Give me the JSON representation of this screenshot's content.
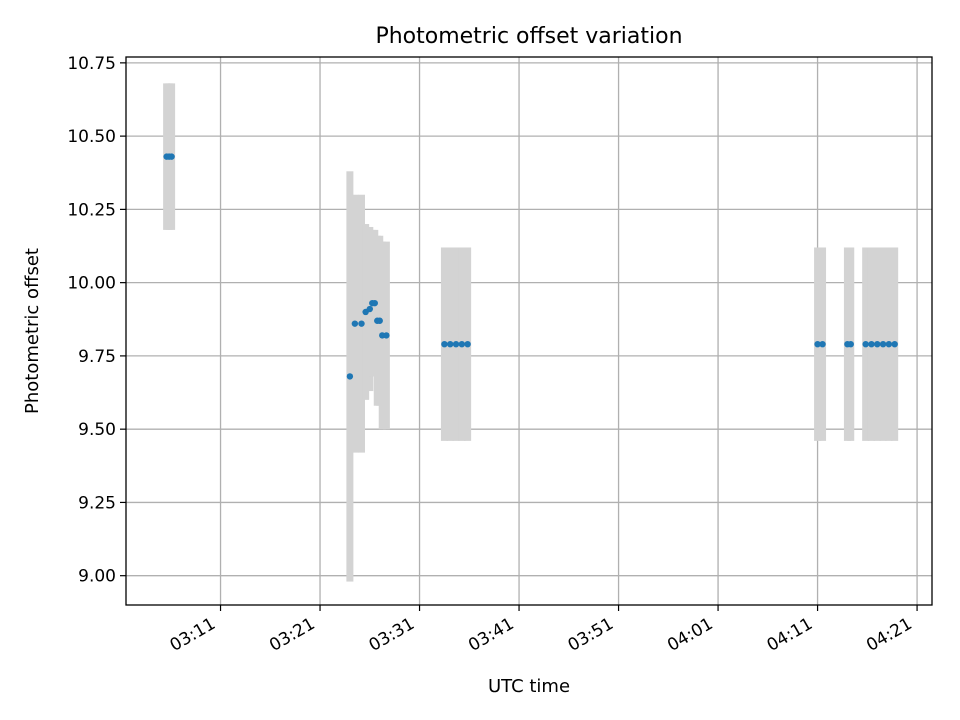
{
  "chart_data": {
    "type": "scatter",
    "title": "Photometric offset variation",
    "xlabel": "UTC time",
    "ylabel": "Photometric offset",
    "x_unit": "UTC HH:MM",
    "xlim": [
      "03:01:30",
      "04:22:30"
    ],
    "ylim": [
      8.9,
      10.77
    ],
    "grid": true,
    "x_ticks": [
      "03:11",
      "03:21",
      "03:31",
      "03:41",
      "03:51",
      "04:01",
      "04:11",
      "04:21"
    ],
    "y_ticks": [
      "9.00",
      "9.25",
      "9.50",
      "9.75",
      "10.00",
      "10.25",
      "10.50",
      "10.75"
    ],
    "series": [
      {
        "marker_color": "#1f77b4",
        "errorbar_color": "#d3d3d3",
        "points": [
          {
            "x": "03:05:35",
            "y": 10.43,
            "err": 0.25
          },
          {
            "x": "03:05:50",
            "y": 10.43,
            "err": 0.25
          },
          {
            "x": "03:06:05",
            "y": 10.43,
            "err": 0.25
          },
          {
            "x": "03:24:00",
            "y": 9.68,
            "err": 0.7
          },
          {
            "x": "03:24:30",
            "y": 9.86,
            "err": 0.44
          },
          {
            "x": "03:25:10",
            "y": 9.86,
            "err": 0.44
          },
          {
            "x": "03:25:35",
            "y": 9.9,
            "err": 0.3
          },
          {
            "x": "03:26:00",
            "y": 9.91,
            "err": 0.28
          },
          {
            "x": "03:26:15",
            "y": 9.93,
            "err": 0.25
          },
          {
            "x": "03:26:30",
            "y": 9.93,
            "err": 0.25
          },
          {
            "x": "03:26:45",
            "y": 9.87,
            "err": 0.29
          },
          {
            "x": "03:27:00",
            "y": 9.87,
            "err": 0.29
          },
          {
            "x": "03:27:15",
            "y": 9.82,
            "err": 0.32
          },
          {
            "x": "03:27:40",
            "y": 9.82,
            "err": 0.32
          },
          {
            "x": "03:33:30",
            "y": 9.79,
            "err": 0.33
          },
          {
            "x": "03:34:05",
            "y": 9.79,
            "err": 0.33
          },
          {
            "x": "03:34:40",
            "y": 9.79,
            "err": 0.33
          },
          {
            "x": "03:35:15",
            "y": 9.79,
            "err": 0.33
          },
          {
            "x": "03:35:50",
            "y": 9.79,
            "err": 0.33
          },
          {
            "x": "04:11:00",
            "y": 9.79,
            "err": 0.33
          },
          {
            "x": "04:11:30",
            "y": 9.79,
            "err": 0.33
          },
          {
            "x": "04:14:00",
            "y": 9.79,
            "err": 0.33
          },
          {
            "x": "04:14:20",
            "y": 9.79,
            "err": 0.33
          },
          {
            "x": "04:15:50",
            "y": 9.79,
            "err": 0.33
          },
          {
            "x": "04:16:25",
            "y": 9.79,
            "err": 0.33
          },
          {
            "x": "04:17:00",
            "y": 9.79,
            "err": 0.33
          },
          {
            "x": "04:17:35",
            "y": 9.79,
            "err": 0.33
          },
          {
            "x": "04:18:10",
            "y": 9.79,
            "err": 0.33
          },
          {
            "x": "04:18:45",
            "y": 9.79,
            "err": 0.33
          }
        ]
      }
    ],
    "colors": {
      "grid": "#b0b0b0",
      "axes": "#000000"
    }
  }
}
